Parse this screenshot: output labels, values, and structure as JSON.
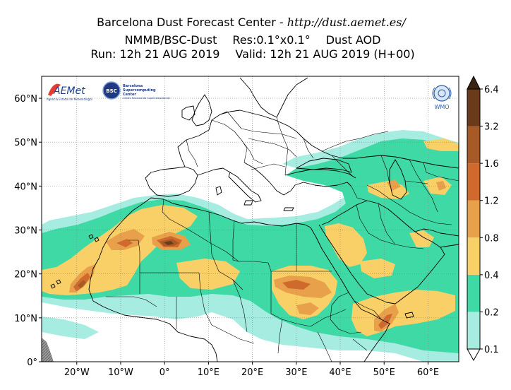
{
  "header": {
    "title_prefix": "Barcelona Dust Forecast Center - ",
    "title_url": "http://dust.aemet.es/",
    "model": "NMMB/BSC-Dust",
    "resolution": "Res:0.1°x0.1°",
    "variable": "Dust AOD",
    "run": "Run: 12h 21 AUG 2019",
    "valid": "Valid: 12h 21 AUG 2019 (H+00)"
  },
  "map": {
    "lon_range": [
      -28,
      67
    ],
    "lat_range": [
      0,
      65
    ],
    "lat_ticks": [
      {
        "value": 60,
        "label": "60°N"
      },
      {
        "value": 50,
        "label": "50°N"
      },
      {
        "value": 40,
        "label": "40°N"
      },
      {
        "value": 30,
        "label": "30°N"
      },
      {
        "value": 20,
        "label": "20°N"
      },
      {
        "value": 10,
        "label": "10°N"
      },
      {
        "value": 0,
        "label": "0°"
      }
    ],
    "lon_ticks": [
      {
        "value": -20,
        "label": "20°W"
      },
      {
        "value": -10,
        "label": "10°W"
      },
      {
        "value": 0,
        "label": "0°"
      },
      {
        "value": 10,
        "label": "10°E"
      },
      {
        "value": 20,
        "label": "20°E"
      },
      {
        "value": 30,
        "label": "30°E"
      },
      {
        "value": 40,
        "label": "40°E"
      },
      {
        "value": 50,
        "label": "50°E"
      },
      {
        "value": 60,
        "label": "60°E"
      }
    ],
    "grid": true
  },
  "logos": {
    "aemet": "AEMet",
    "aemet_sub": "Agencia Estatal de Meteorología",
    "bsc": "BSC",
    "bsc_text": [
      "Barcelona",
      "Supercomputing",
      "Center"
    ],
    "bsc_sub": "Centro Nacional de Supercomputación",
    "wmo": "WMO"
  },
  "colorbar": {
    "levels": [
      "0.1",
      "0.2",
      "0.4",
      "0.8",
      "1.2",
      "1.6",
      "3.2",
      "6.4"
    ],
    "colors": [
      "#a6ece0",
      "#3fd9a6",
      "#f9d068",
      "#e8a04a",
      "#d06a2c",
      "#a85a26",
      "#6b3a1a",
      "#3d2410"
    ]
  },
  "colors": {
    "land": "#ffffff",
    "coast": "#000000",
    "missing": "#808080"
  }
}
